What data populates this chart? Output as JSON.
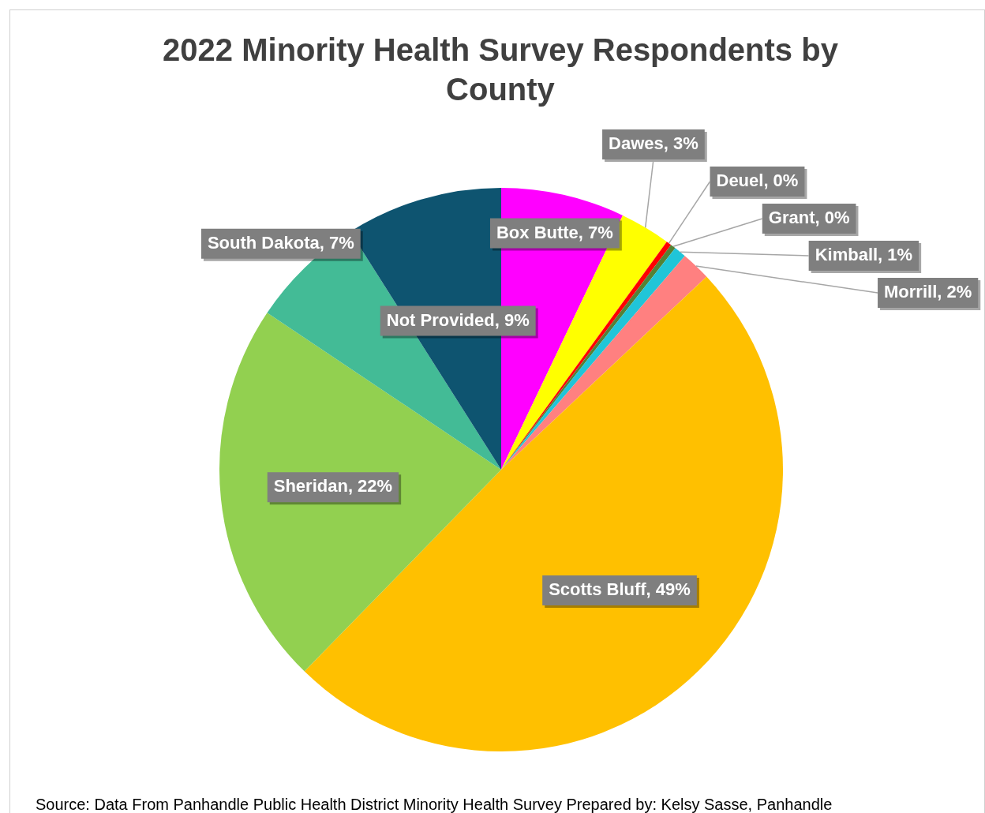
{
  "chart_data": {
    "type": "pie",
    "title": "2022 Minority Health Survey Respondents by County",
    "categories": [
      "Box Butte",
      "Dawes",
      "Deuel",
      "Grant",
      "Kimball",
      "Morrill",
      "Scotts Bluff",
      "Sheridan",
      "South Dakota",
      "Not Provided"
    ],
    "values": [
      7.1,
      2.9,
      0.3,
      0.3,
      0.7,
      1.7,
      49.3,
      22.1,
      6.6,
      9.0
    ],
    "value_labels": [
      "7%",
      "3%",
      "0%",
      "0%",
      "1%",
      "2%",
      "49%",
      "22%",
      "7%",
      "9%"
    ],
    "colors": [
      "#ff00ff",
      "#ffff00",
      "#ff0000",
      "#548235",
      "#20c5d8",
      "#ff8080",
      "#ffc000",
      "#92d050",
      "#43bb96",
      "#0e5470"
    ],
    "legend": false,
    "annotations": [
      "Source: Data From Panhandle Public Health District Minority Health Survey Prepared by: Kelsy Sasse, Panhandle"
    ]
  }
}
